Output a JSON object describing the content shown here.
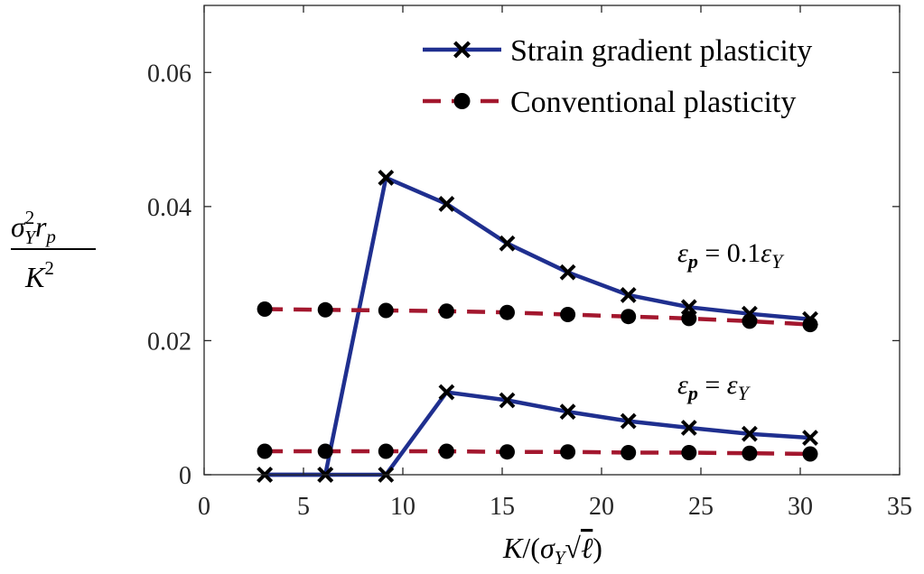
{
  "chart_data": {
    "type": "line",
    "xlabel": "K/(σY√ℓ)",
    "ylabel": "σY²rp/K²",
    "xlim": [
      0,
      35
    ],
    "ylim": [
      0,
      0.07
    ],
    "xticks": [
      0,
      5,
      10,
      15,
      20,
      25,
      30,
      35
    ],
    "xtick_labels": [
      "0",
      "5",
      "10",
      "15",
      "20",
      "25",
      "30",
      "35"
    ],
    "yticks": [
      0,
      0.02,
      0.04,
      0.06
    ],
    "ytick_labels": [
      "0",
      "0.02",
      "0.04",
      "0.06"
    ],
    "grid": false,
    "legend_position": "top-right",
    "legend": [
      {
        "label": "Strain gradient plasticity",
        "color": "#1f2f8f",
        "style": "solid",
        "marker": "x"
      },
      {
        "label": "Conventional plasticity",
        "color": "#a3172e",
        "style": "dashed",
        "marker": "o"
      }
    ],
    "annotations": [
      "εp = 0.1εY",
      "εp = εY"
    ],
    "x": [
      3.05,
      6.1,
      9.15,
      12.2,
      15.25,
      18.3,
      21.35,
      24.4,
      27.45,
      30.5
    ],
    "series": [
      {
        "group": "Strain gradient plasticity",
        "case": "εp = 0.1εY",
        "style": "sgp",
        "values": [
          0.0,
          0.0,
          0.0443,
          0.0404,
          0.0345,
          0.0302,
          0.0268,
          0.025,
          0.024,
          0.0232
        ]
      },
      {
        "group": "Conventional plasticity",
        "case": "εp = 0.1εY",
        "style": "cp",
        "values": [
          0.0247,
          0.0246,
          0.0245,
          0.0244,
          0.0242,
          0.0239,
          0.0236,
          0.0233,
          0.0229,
          0.0224
        ]
      },
      {
        "group": "Strain gradient plasticity",
        "case": "εp = εY",
        "style": "sgp",
        "values": [
          0.0,
          0.0,
          0.0,
          0.0123,
          0.0111,
          0.0094,
          0.008,
          0.007,
          0.0061,
          0.0055
        ]
      },
      {
        "group": "Conventional plasticity",
        "case": "εp = εY",
        "style": "cp",
        "values": [
          0.0035,
          0.0035,
          0.0035,
          0.0035,
          0.0034,
          0.0034,
          0.0033,
          0.0033,
          0.0032,
          0.0031
        ]
      }
    ]
  }
}
